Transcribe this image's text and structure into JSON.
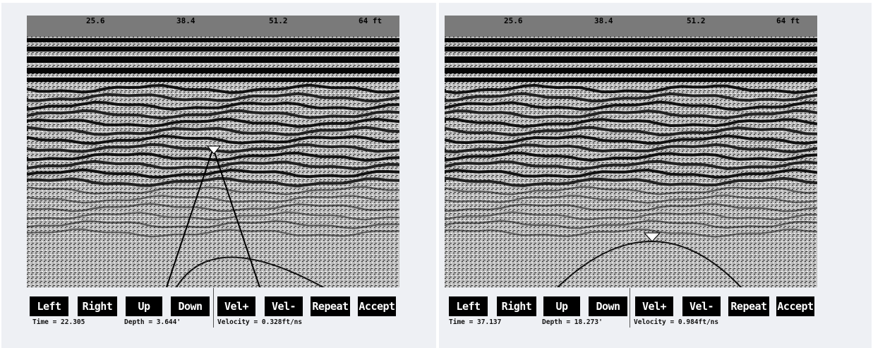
{
  "panels": [
    {
      "scale": [
        "25.6",
        "38.4",
        "51.2",
        "64 ft"
      ],
      "buttons": [
        "Left",
        "Right",
        "Up",
        "Down",
        "Vel+",
        "Vel-",
        "Repeat",
        "Accept"
      ],
      "time": "Time = 22.305",
      "depth": "Depth = 3.644'",
      "velocity": "Velocity = 0.328ft/ns"
    },
    {
      "scale": [
        "25.6",
        "38.4",
        "51.2",
        "64 ft"
      ],
      "buttons": [
        "Left",
        "Right",
        "Up",
        "Down",
        "Vel+",
        "Vel-",
        "Repeat",
        "Accept"
      ],
      "time": "Time = 37.137",
      "depth": "Depth = 18.273'",
      "velocity": "Velocity = 0.984ft/ns"
    }
  ]
}
